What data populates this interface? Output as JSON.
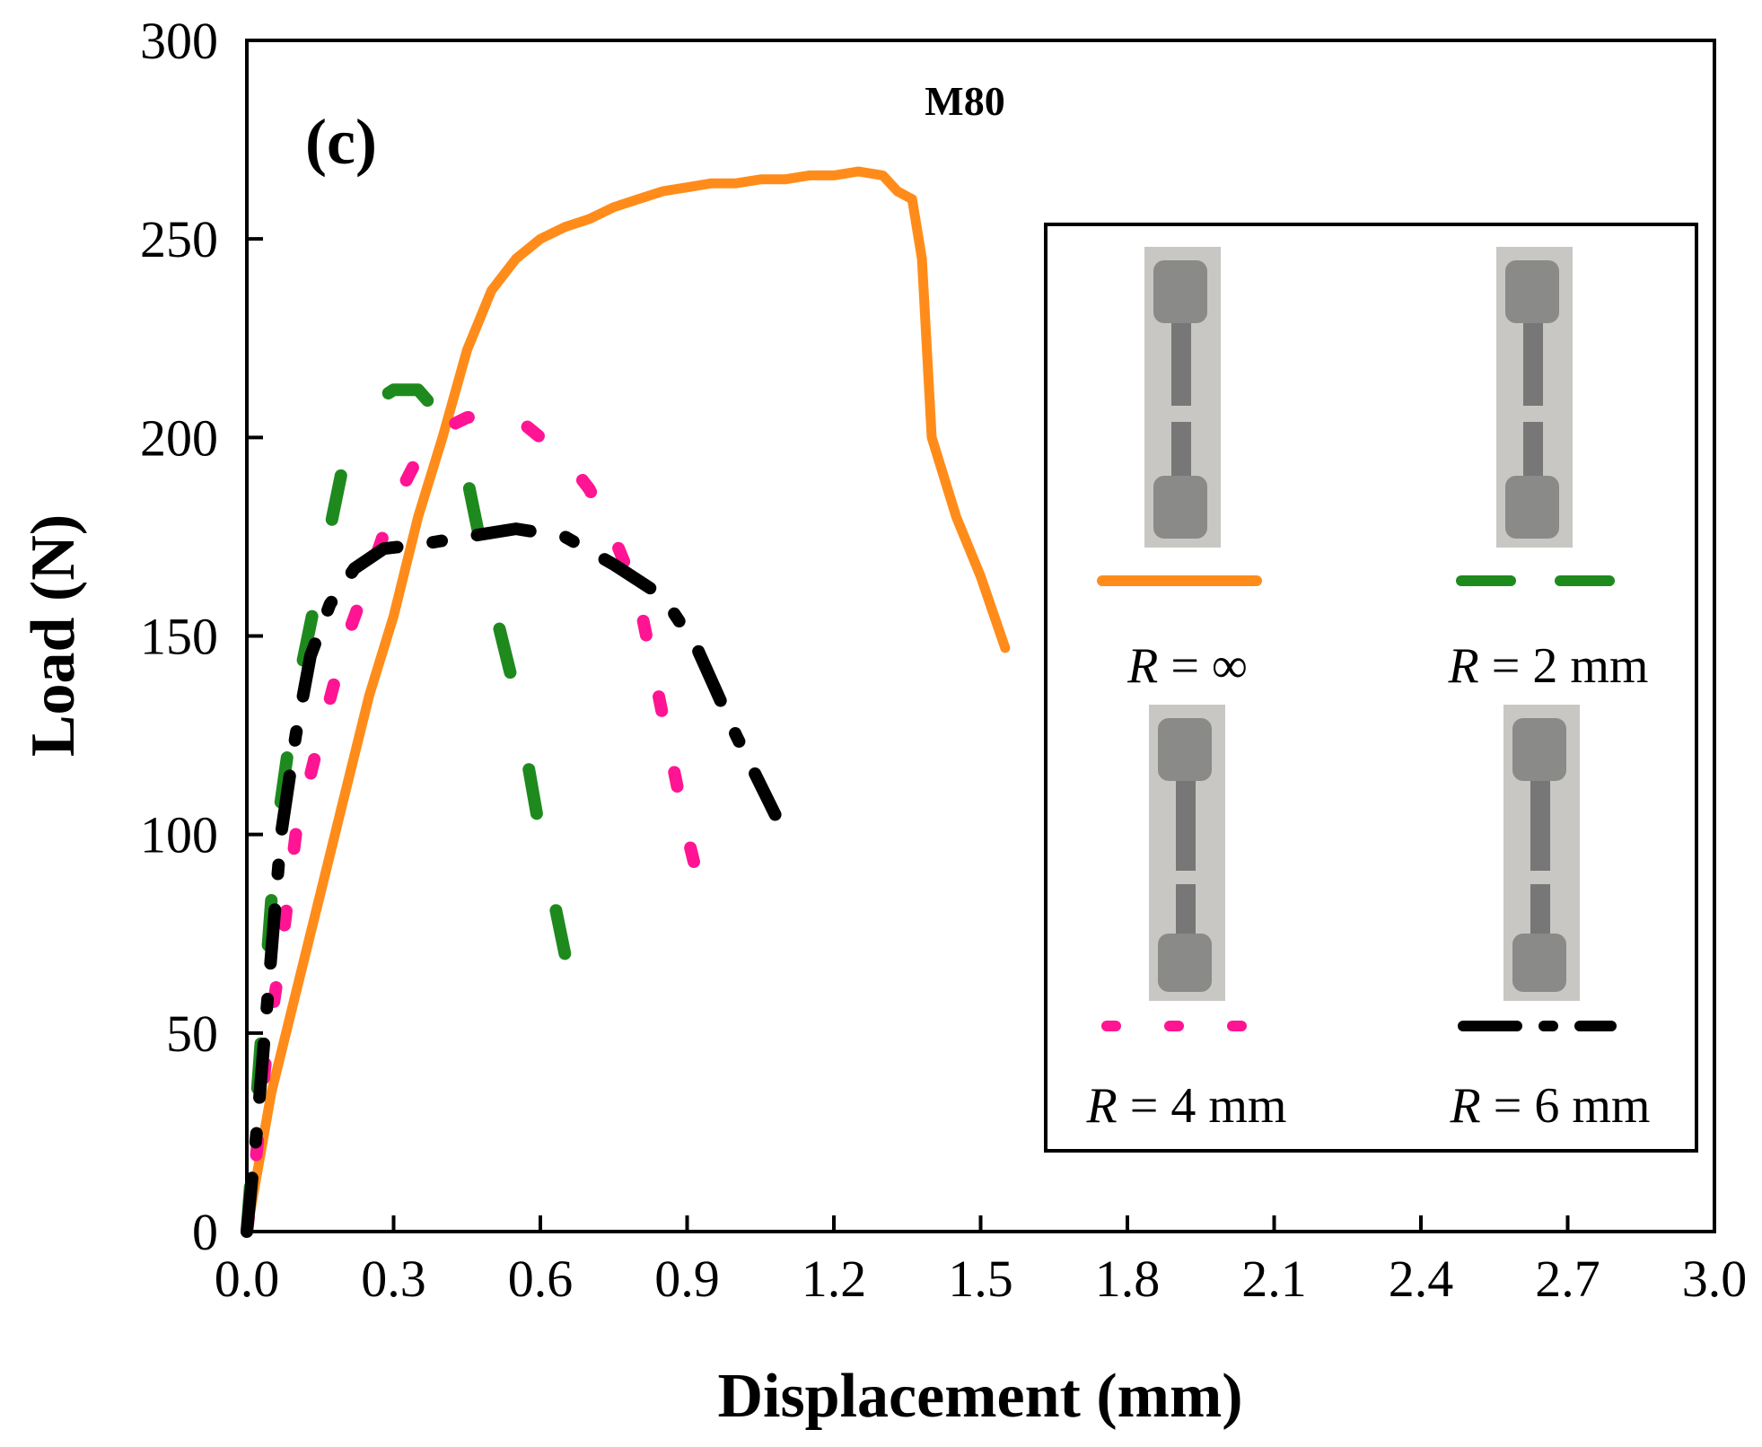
{
  "chart_data": {
    "type": "line",
    "panel_label": "(c)",
    "title": "M80",
    "xlabel": "Displacement (mm)",
    "ylabel": "Load (N)",
    "xlim": [
      0,
      3.0
    ],
    "ylim": [
      0,
      300
    ],
    "x_ticks": [
      "0.0",
      "0.3",
      "0.6",
      "0.9",
      "1.2",
      "1.5",
      "1.8",
      "2.1",
      "2.4",
      "2.7",
      "3.0"
    ],
    "y_ticks": [
      "0",
      "50",
      "100",
      "150",
      "200",
      "250",
      "300"
    ],
    "grid": false,
    "legend_position": "right",
    "series": [
      {
        "name": "R = ∞",
        "legend_italic": "R",
        "legend_rest": " = ∞",
        "color": "#ff8c1a",
        "style": "solid",
        "points": [
          [
            0,
            0
          ],
          [
            0.05,
            35
          ],
          [
            0.1,
            60
          ],
          [
            0.15,
            85
          ],
          [
            0.2,
            110
          ],
          [
            0.25,
            135
          ],
          [
            0.3,
            155
          ],
          [
            0.35,
            180
          ],
          [
            0.4,
            200
          ],
          [
            0.45,
            222
          ],
          [
            0.5,
            237
          ],
          [
            0.55,
            245
          ],
          [
            0.6,
            250
          ],
          [
            0.65,
            253
          ],
          [
            0.7,
            255
          ],
          [
            0.75,
            258
          ],
          [
            0.8,
            260
          ],
          [
            0.85,
            262
          ],
          [
            0.9,
            263
          ],
          [
            0.95,
            264
          ],
          [
            1.0,
            264
          ],
          [
            1.05,
            265
          ],
          [
            1.1,
            265
          ],
          [
            1.15,
            266
          ],
          [
            1.2,
            266
          ],
          [
            1.25,
            267
          ],
          [
            1.3,
            266
          ],
          [
            1.33,
            262
          ],
          [
            1.36,
            260
          ],
          [
            1.38,
            245
          ],
          [
            1.4,
            200
          ],
          [
            1.45,
            180
          ],
          [
            1.5,
            165
          ],
          [
            1.55,
            147
          ]
        ]
      },
      {
        "name": "R = 2 mm",
        "legend_italic": "R",
        "legend_rest": " = 2 mm",
        "color": "#1e8a1e",
        "style": "dashed",
        "points": [
          [
            0,
            0
          ],
          [
            0.03,
            50
          ],
          [
            0.06,
            100
          ],
          [
            0.1,
            135
          ],
          [
            0.15,
            165
          ],
          [
            0.2,
            195
          ],
          [
            0.25,
            208
          ],
          [
            0.3,
            212
          ],
          [
            0.35,
            212
          ],
          [
            0.4,
            205
          ],
          [
            0.45,
            190
          ],
          [
            0.5,
            160
          ],
          [
            0.55,
            135
          ],
          [
            0.6,
            100
          ],
          [
            0.65,
            70
          ]
        ]
      },
      {
        "name": "R = 4 mm",
        "legend_italic": "R",
        "legend_rest": " = 4 mm",
        "color": "#ff1493",
        "style": "dotted",
        "points": [
          [
            0,
            0
          ],
          [
            0.02,
            20
          ],
          [
            0.04,
            45
          ],
          [
            0.07,
            70
          ],
          [
            0.1,
            100
          ],
          [
            0.15,
            125
          ],
          [
            0.2,
            148
          ],
          [
            0.25,
            165
          ],
          [
            0.3,
            183
          ],
          [
            0.35,
            195
          ],
          [
            0.4,
            202
          ],
          [
            0.45,
            205
          ],
          [
            0.5,
            206
          ],
          [
            0.55,
            205
          ],
          [
            0.6,
            200
          ],
          [
            0.65,
            195
          ],
          [
            0.7,
            187
          ],
          [
            0.75,
            175
          ],
          [
            0.8,
            160
          ],
          [
            0.85,
            130
          ],
          [
            0.9,
            100
          ],
          [
            0.93,
            85
          ]
        ]
      },
      {
        "name": "R = 6 mm",
        "legend_italic": "R",
        "legend_rest": " = 6 mm",
        "color": "#000000",
        "style": "dashdot",
        "points": [
          [
            0,
            0
          ],
          [
            0.02,
            25
          ],
          [
            0.04,
            55
          ],
          [
            0.07,
            100
          ],
          [
            0.1,
            125
          ],
          [
            0.13,
            145
          ],
          [
            0.17,
            158
          ],
          [
            0.22,
            167
          ],
          [
            0.28,
            172
          ],
          [
            0.35,
            173
          ],
          [
            0.45,
            175
          ],
          [
            0.55,
            177
          ],
          [
            0.65,
            175
          ],
          [
            0.75,
            168
          ],
          [
            0.85,
            160
          ],
          [
            0.92,
            147
          ],
          [
            1.0,
            125
          ],
          [
            1.08,
            105
          ]
        ]
      }
    ]
  }
}
